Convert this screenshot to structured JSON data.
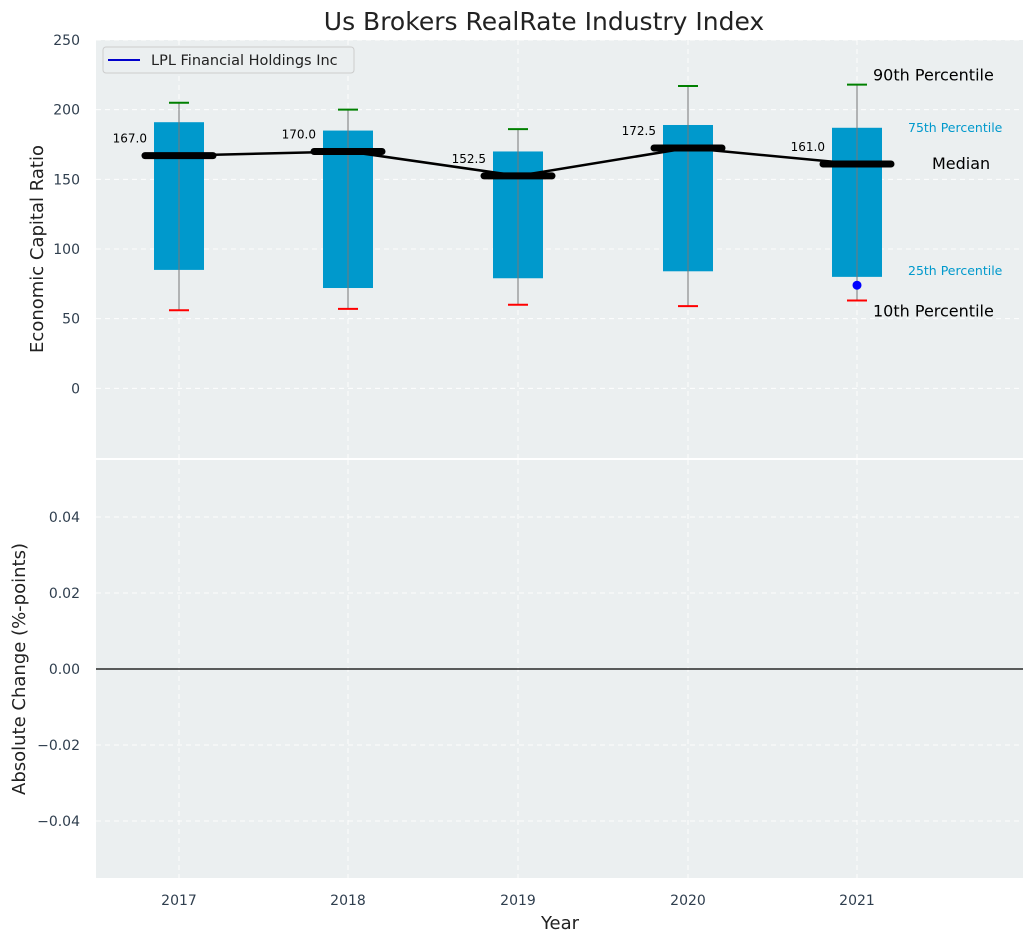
{
  "chart_data": [
    {
      "type": "box",
      "title": "Us Brokers RealRate Industry Index",
      "ylabel": "Economic Capital Ratio",
      "xlabel": "",
      "categories": [
        "2017",
        "2018",
        "2019",
        "2020",
        "2021"
      ],
      "ylim": [
        -50,
        250
      ],
      "yticks": [
        0,
        50,
        100,
        150,
        200,
        250
      ],
      "grid": true,
      "legend": {
        "placement": "top-left",
        "entries": [
          {
            "name": "LPL Financial Holdings Inc",
            "color": "#0000cc"
          }
        ]
      },
      "boxes": [
        {
          "year": "2017",
          "p10": 56,
          "p25": 85,
          "median": 167.0,
          "p75": 191,
          "p90": 205,
          "median_label": "167.0"
        },
        {
          "year": "2018",
          "p10": 57,
          "p25": 72,
          "median": 170.0,
          "p75": 185,
          "p90": 200,
          "median_label": "170.0"
        },
        {
          "year": "2019",
          "p10": 60,
          "p25": 79,
          "median": 152.5,
          "p75": 170,
          "p90": 186,
          "median_label": "152.5"
        },
        {
          "year": "2020",
          "p10": 59,
          "p25": 84,
          "median": 172.5,
          "p75": 189,
          "p90": 217,
          "median_label": "172.5"
        },
        {
          "year": "2021",
          "p10": 63,
          "p25": 80,
          "median": 161.0,
          "p75": 187,
          "p90": 218,
          "median_label": "161.0"
        }
      ],
      "company_points": [
        {
          "year": "2021",
          "value": 74
        }
      ],
      "annotations": {
        "p90": "90th Percentile",
        "p75": "75th Percentile",
        "median": "Median",
        "p25": "25th Percentile",
        "p10": "10th Percentile"
      },
      "colors": {
        "box": "#0099cc",
        "median_line": "#000000",
        "whisker_top": "#008000",
        "whisker_bottom": "#ff0000",
        "company_point": "#0000ff",
        "background": "#ebeff0"
      }
    },
    {
      "type": "line",
      "title": "",
      "xlabel": "Year",
      "ylabel": "Absolute Change (%-points)",
      "categories": [
        "2017",
        "2018",
        "2019",
        "2020",
        "2021"
      ],
      "ylim": [
        -0.055,
        0.055
      ],
      "yticks": [
        -0.04,
        -0.02,
        0.0,
        0.02,
        0.04
      ],
      "ytick_labels": [
        "−0.04",
        "−0.02",
        "0.00",
        "0.02",
        "0.04"
      ],
      "grid": true,
      "series": []
    }
  ]
}
